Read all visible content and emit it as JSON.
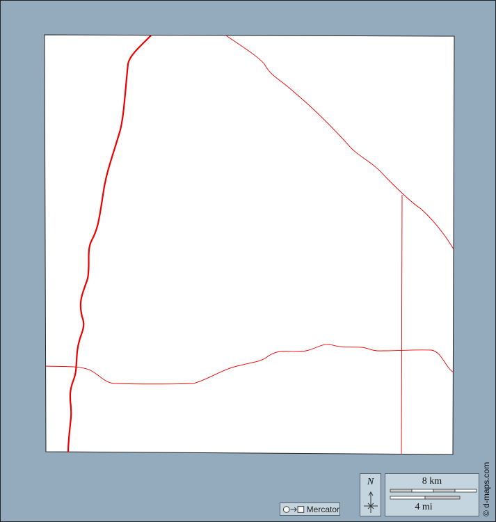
{
  "map": {
    "colors": {
      "background": "#94abbd",
      "land": "#ffffff",
      "roads": "#ee0000",
      "panel": "#c5d5df"
    },
    "projection_label": "Mercator",
    "projection_icon": "circle-to-square-icon",
    "north_label": "N",
    "scale": {
      "km_label": "8 km",
      "mi_label": "4 mi"
    },
    "credit": "© d-maps.com"
  }
}
